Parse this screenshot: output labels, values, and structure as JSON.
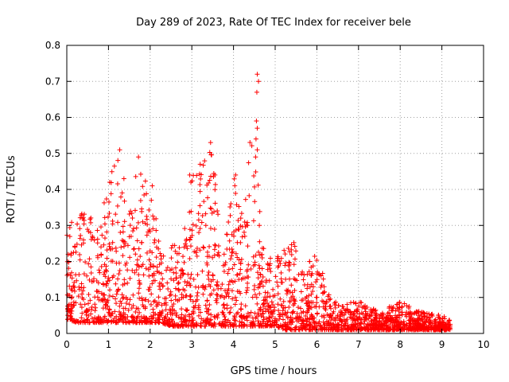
{
  "chart_data": {
    "type": "scatter",
    "title": "Day 289 of 2023, Rate Of TEC Index for receiver bele",
    "xlabel": "GPS time / hours",
    "ylabel": "ROTI / TECUs",
    "xlim": [
      0,
      10
    ],
    "ylim": [
      0,
      0.8
    ],
    "x_ticks": [
      "0",
      "1",
      "2",
      "3",
      "4",
      "5",
      "6",
      "7",
      "8",
      "9",
      "10"
    ],
    "y_ticks": [
      "0",
      "0.1",
      "0.2",
      "0.3",
      "0.4",
      "0.5",
      "0.6",
      "0.7",
      "0.8"
    ],
    "grid": true,
    "marker": "+",
    "color": "#ff0000",
    "envelope": [
      {
        "x": 0.0,
        "low": 0.04,
        "high": 0.3
      },
      {
        "x": 0.25,
        "low": 0.03,
        "high": 0.33
      },
      {
        "x": 0.5,
        "low": 0.03,
        "high": 0.37
      },
      {
        "x": 0.75,
        "low": 0.03,
        "high": 0.3
      },
      {
        "x": 1.0,
        "low": 0.03,
        "high": 0.42
      },
      {
        "x": 1.25,
        "low": 0.03,
        "high": 0.51
      },
      {
        "x": 1.5,
        "low": 0.03,
        "high": 0.36
      },
      {
        "x": 1.75,
        "low": 0.03,
        "high": 0.49
      },
      {
        "x": 2.0,
        "low": 0.03,
        "high": 0.42
      },
      {
        "x": 2.25,
        "low": 0.03,
        "high": 0.24
      },
      {
        "x": 2.5,
        "low": 0.02,
        "high": 0.25
      },
      {
        "x": 2.75,
        "low": 0.02,
        "high": 0.24
      },
      {
        "x": 3.0,
        "low": 0.02,
        "high": 0.44
      },
      {
        "x": 3.25,
        "low": 0.02,
        "high": 0.47
      },
      {
        "x": 3.5,
        "low": 0.02,
        "high": 0.53
      },
      {
        "x": 3.75,
        "low": 0.02,
        "high": 0.2
      },
      {
        "x": 4.0,
        "low": 0.02,
        "high": 0.44
      },
      {
        "x": 4.25,
        "low": 0.02,
        "high": 0.31
      },
      {
        "x": 4.5,
        "low": 0.02,
        "high": 0.72
      },
      {
        "x": 4.75,
        "low": 0.02,
        "high": 0.2
      },
      {
        "x": 5.0,
        "low": 0.02,
        "high": 0.22
      },
      {
        "x": 5.25,
        "low": 0.01,
        "high": 0.24
      },
      {
        "x": 5.5,
        "low": 0.01,
        "high": 0.26
      },
      {
        "x": 5.75,
        "low": 0.01,
        "high": 0.18
      },
      {
        "x": 6.0,
        "low": 0.01,
        "high": 0.25
      },
      {
        "x": 6.25,
        "low": 0.01,
        "high": 0.12
      },
      {
        "x": 6.5,
        "low": 0.01,
        "high": 0.08
      },
      {
        "x": 7.0,
        "low": 0.01,
        "high": 0.09
      },
      {
        "x": 7.5,
        "low": 0.01,
        "high": 0.06
      },
      {
        "x": 8.0,
        "low": 0.01,
        "high": 0.09
      },
      {
        "x": 8.5,
        "low": 0.01,
        "high": 0.06
      },
      {
        "x": 9.0,
        "low": 0.01,
        "high": 0.05
      },
      {
        "x": 9.2,
        "low": 0.01,
        "high": 0.04
      }
    ],
    "peaks": [
      {
        "x": 1.27,
        "y": 0.51
      },
      {
        "x": 1.72,
        "y": 0.49
      },
      {
        "x": 3.45,
        "y": 0.53
      },
      {
        "x": 4.57,
        "y": 0.72
      },
      {
        "x": 4.6,
        "y": 0.7
      },
      {
        "x": 4.56,
        "y": 0.67
      },
      {
        "x": 4.55,
        "y": 0.59
      },
      {
        "x": 4.57,
        "y": 0.57
      },
      {
        "x": 4.54,
        "y": 0.54
      },
      {
        "x": 4.57,
        "y": 0.51
      },
      {
        "x": 4.53,
        "y": 0.49
      },
      {
        "x": 4.62,
        "y": 0.3
      },
      {
        "x": 3.2,
        "y": 0.47
      },
      {
        "x": 4.05,
        "y": 0.44
      },
      {
        "x": 2.95,
        "y": 0.44
      },
      {
        "x": 1.03,
        "y": 0.42
      },
      {
        "x": 2.05,
        "y": 0.41
      }
    ]
  }
}
